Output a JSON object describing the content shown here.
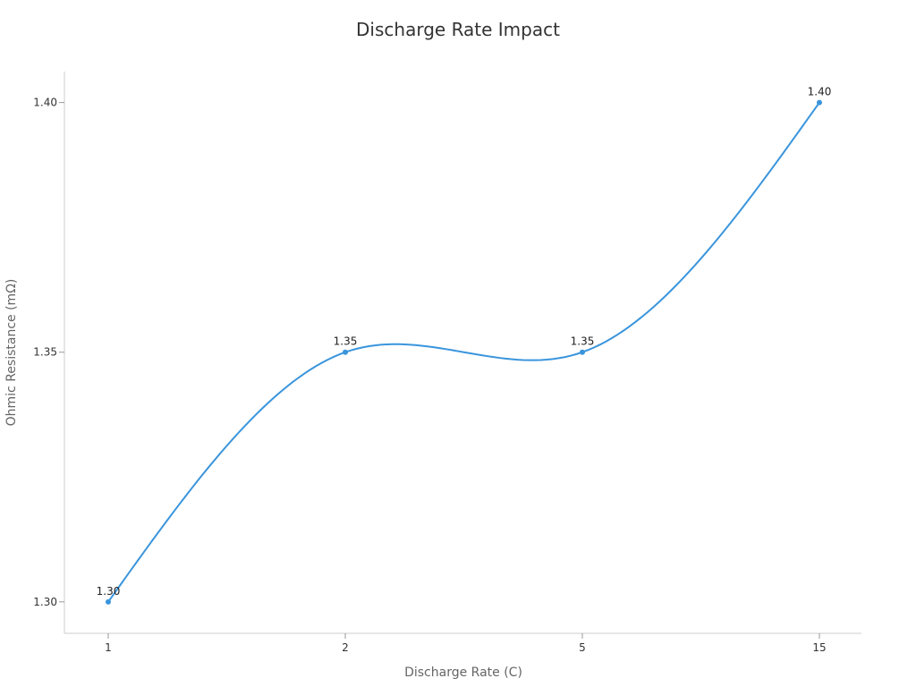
{
  "chart_data": {
    "type": "line",
    "title": "Discharge Rate Impact",
    "xlabel": "Discharge Rate (C)",
    "ylabel": "Ohmic Resistance (mΩ)",
    "categories": [
      "1",
      "2",
      "5",
      "15"
    ],
    "yticks": [
      "1.30",
      "1.35",
      "1.40"
    ],
    "ytick_values": [
      1.3,
      1.35,
      1.4
    ],
    "ylim": [
      1.2937,
      1.4062
    ],
    "grid": false,
    "legend": "none",
    "series": [
      {
        "values": [
          1.3,
          1.35,
          1.35,
          1.4
        ],
        "labels": [
          "1.30",
          "1.35",
          "1.35",
          "1.40"
        ],
        "color": "#3a95dc",
        "smooth": true
      }
    ]
  }
}
